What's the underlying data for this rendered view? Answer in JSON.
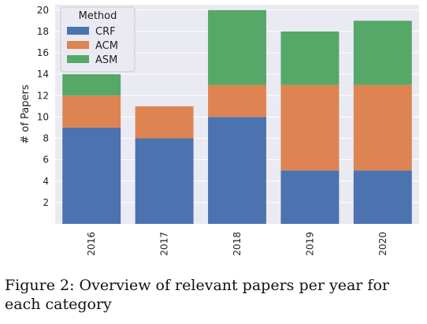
{
  "chart_data": {
    "type": "bar",
    "stacked": true,
    "categories": [
      "2016",
      "2017",
      "2018",
      "2019",
      "2020"
    ],
    "series": [
      {
        "name": "CRF",
        "values": [
          9,
          8,
          10,
          5,
          5
        ],
        "color": "#4c72b0"
      },
      {
        "name": "ACM",
        "values": [
          3,
          3,
          3,
          8,
          8
        ],
        "color": "#dd8452"
      },
      {
        "name": "ASM",
        "values": [
          2,
          0,
          7,
          5,
          6
        ],
        "color": "#55a868"
      }
    ],
    "ylabel": "# of Papers",
    "ylim": [
      0,
      20.5
    ],
    "yticks": [
      2,
      4,
      6,
      8,
      10,
      12,
      14,
      16,
      18,
      20
    ],
    "grid": true,
    "legend": {
      "title": "Method",
      "placement": "top-left"
    }
  },
  "caption": {
    "text": "Figure 2:  Overview of relevant papers per year for each category"
  }
}
